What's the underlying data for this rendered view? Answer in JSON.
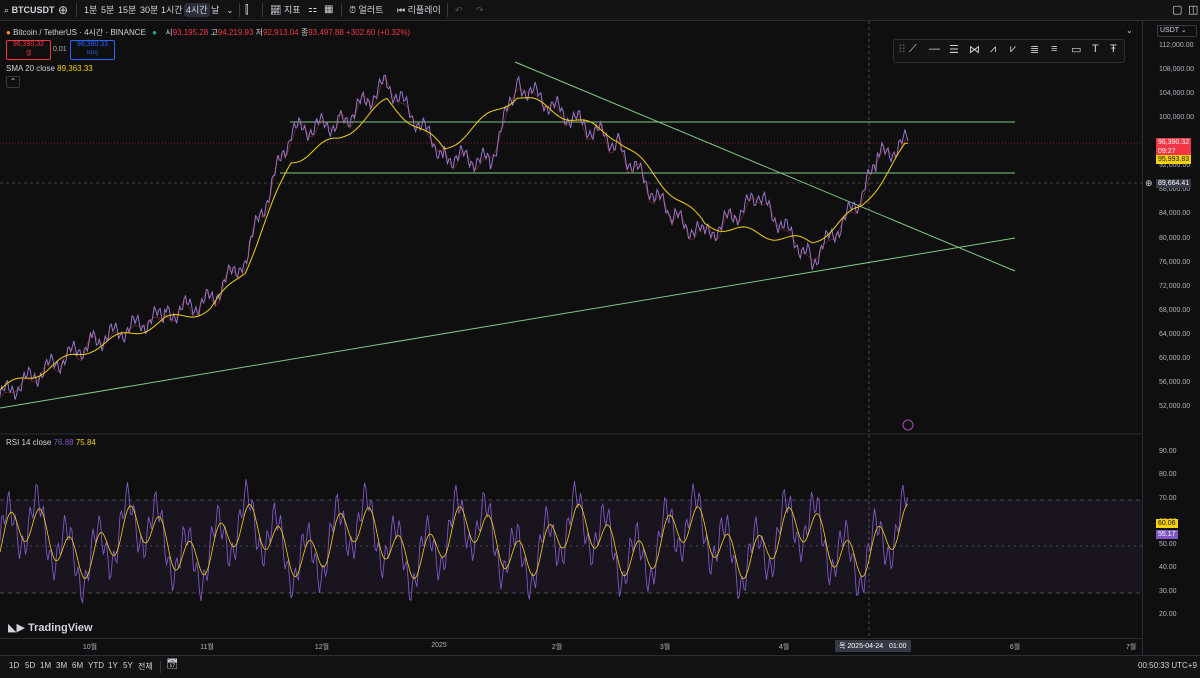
{
  "toolbar": {
    "symbol": "BTCUSDT",
    "intervals": [
      "1분",
      "5분",
      "15분",
      "30분",
      "1시간",
      "4시간",
      "날"
    ],
    "active_interval": "4시간",
    "indicators_label": "지표",
    "alert_label": "얼러트",
    "replay_label": "리플레이"
  },
  "legend": {
    "title": "Bitcoin / TetherUS · 4시간 · BINANCE",
    "ohlc": {
      "o_label": "시",
      "o": "93,195.28",
      "h_label": "고",
      "h": "94,219.93",
      "l_label": "저",
      "l": "92,913.04",
      "c_label": "종",
      "c": "93,497.88",
      "change": "+302.60 (+0.32%)"
    },
    "sell_price": "96,390.32",
    "sell_label": "셀",
    "spread": "0.01",
    "buy_price": "96,390.33",
    "buy_label": "바이",
    "sma_label": "SMA 20 close",
    "sma_value": "89,363.33",
    "rsi_label": "RSI 14 close",
    "rsi_value": "76.88",
    "rsi_ma_value": "75.84"
  },
  "price_axis": {
    "currency": "USDT",
    "ticks": [
      "112,000.00",
      "108,000.00",
      "104,000.00",
      "100,000.00",
      "96,000.00",
      "92,000.00",
      "88,000.00",
      "84,000.00",
      "80,000.00",
      "76,000.00",
      "72,000.00",
      "68,000.00",
      "64,000.00",
      "60,000.00",
      "56,000.00",
      "52,000.00"
    ],
    "current_price": "96,390.32",
    "countdown": "09:27",
    "sma_tag": "95,993.83",
    "crosshair_tag": "89,664.41",
    "colors": {
      "current": "#f23645",
      "sma": "#f5d10a",
      "crosshair": "#2a2e39"
    }
  },
  "rsi_axis": {
    "ticks": [
      "90.00",
      "80.00",
      "70.00",
      "60.00",
      "50.00",
      "40.00",
      "30.00",
      "20.00"
    ],
    "rsi_tag": "60.06",
    "rsi_ma_tag": "55.17",
    "colors": {
      "rsi": "#7e57c2",
      "ma": "#f5d10a"
    }
  },
  "time_axis": {
    "labels": [
      "10월",
      "11월",
      "12월",
      "2025",
      "2월",
      "3월",
      "4월",
      "6월",
      "7월"
    ],
    "crosshair_label": "목 2025-04-24   01:00"
  },
  "bottom": {
    "ranges": [
      "1D",
      "5D",
      "1M",
      "3M",
      "6M",
      "YTD",
      "1Y",
      "5Y",
      "전체"
    ],
    "clock": "00:50:33 UTC+9"
  },
  "branding": {
    "logo_text": "TradingView"
  },
  "chart_data": {
    "type": "line",
    "title": "Bitcoin / TetherUS · 4시간 · BINANCE",
    "series": [
      {
        "name": "BTCUSDT",
        "x": [
          "2024-09-07",
          "2024-10-01",
          "2024-10-20",
          "2024-11-01",
          "2024-11-10",
          "2024-11-22",
          "2024-12-05",
          "2024-12-17",
          "2025-01-01",
          "2025-01-13",
          "2025-01-20",
          "2025-02-01",
          "2025-02-15",
          "2025-03-01",
          "2025-03-10",
          "2025-03-24",
          "2025-04-07",
          "2025-04-20",
          "2025-04-24",
          "2025-05-02"
        ],
        "y": [
          54000,
          63000,
          67500,
          70000,
          77000,
          98000,
          99500,
          106000,
          94000,
          93000,
          106000,
          101000,
          96000,
          84000,
          80500,
          87000,
          76500,
          87000,
          93500,
          96390
        ]
      },
      {
        "name": "SMA 20 close",
        "x": [
          "2024-09-07",
          "2024-10-01",
          "2024-10-20",
          "2024-11-01",
          "2024-11-10",
          "2024-11-22",
          "2024-12-05",
          "2024-12-17",
          "2025-01-01",
          "2025-01-20",
          "2025-02-15",
          "2025-03-01",
          "2025-03-10",
          "2025-04-07",
          "2025-04-20",
          "2025-05-02"
        ],
        "y": [
          55000,
          62000,
          66500,
          68500,
          75000,
          93000,
          97000,
          103000,
          95000,
          104000,
          97000,
          88000,
          82500,
          79500,
          85500,
          95994
        ]
      }
    ],
    "lines": {
      "support_top": 99500,
      "support_bottom": 91500
    },
    "rsi": {
      "overbought": 70,
      "oversold": 30,
      "last": 60.06,
      "ma_last": 55.17
    },
    "ylim": [
      50000,
      114000
    ]
  }
}
